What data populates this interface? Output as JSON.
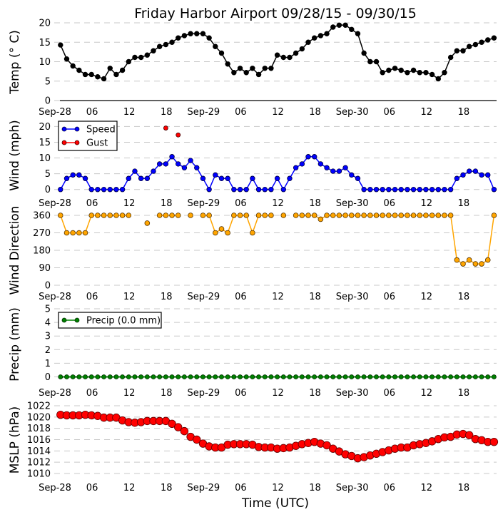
{
  "title": "Friday Harbor Airport 09/28/15 - 09/30/15",
  "xlabel": "Time (UTC)",
  "x_tick_labels": [
    "Sep-28",
    "06",
    "12",
    "18",
    "Sep-29",
    "06",
    "12",
    "18",
    "Sep-30",
    "06",
    "12",
    "18"
  ],
  "x_tick_hours": [
    0,
    6,
    12,
    18,
    24,
    30,
    36,
    42,
    48,
    54,
    60,
    66
  ],
  "colors": {
    "temp": "#000000",
    "speed": "#0000ff",
    "gust": "#ff0000",
    "direction": "#ffa500",
    "precip": "#008000",
    "mslp": "#ff0000"
  },
  "chart_data": [
    {
      "type": "line",
      "ylabel": "Temp (° C)",
      "ylim": [
        0,
        20
      ],
      "yticks": [
        "0",
        "5",
        "10",
        "15",
        "20"
      ],
      "x_hours_start": 0.9,
      "x_step_hours": 1,
      "series": [
        {
          "name": "Temp",
          "values": [
            14.3,
            10.7,
            8.9,
            7.8,
            6.7,
            6.7,
            6.1,
            5.6,
            8.3,
            6.7,
            7.8,
            10.0,
            11.1,
            11.1,
            11.7,
            12.8,
            13.9,
            14.4,
            15.0,
            16.1,
            16.7,
            17.2,
            17.2,
            17.2,
            16.1,
            13.9,
            12.2,
            9.4,
            7.2,
            8.3,
            7.2,
            8.3,
            6.7,
            8.3,
            8.3,
            11.7,
            11.1,
            11.1,
            12.2,
            13.3,
            15.0,
            16.1,
            16.7,
            17.2,
            18.9,
            19.4,
            19.4,
            18.3,
            17.2,
            12.2,
            10.0,
            10.0,
            7.2,
            7.8,
            8.3,
            7.8,
            7.2,
            7.8,
            7.2,
            7.2,
            6.7,
            5.6,
            7.2,
            11.1,
            12.8,
            12.8,
            13.9,
            14.4,
            15.0,
            15.6,
            16.1
          ]
        }
      ]
    },
    {
      "type": "line",
      "ylabel": "Wind (mph)",
      "ylim": [
        0,
        23
      ],
      "yticks": [
        "0",
        "5",
        "10",
        "15",
        "20"
      ],
      "legend": [
        "Speed",
        "Gust"
      ],
      "legend_position": "top-left",
      "series": [
        {
          "name": "Speed",
          "values": [
            0,
            3.5,
            4.6,
            4.6,
            3.5,
            0,
            0,
            0,
            0,
            0,
            0,
            3.5,
            5.8,
            3.5,
            3.5,
            5.8,
            8.1,
            8.1,
            10.4,
            8.1,
            6.9,
            9.2,
            6.9,
            3.5,
            0,
            4.6,
            3.5,
            3.5,
            0,
            0,
            0,
            3.5,
            0,
            0,
            0,
            3.5,
            0,
            3.5,
            6.9,
            8.1,
            10.4,
            10.4,
            8.1,
            6.9,
            5.8,
            5.8,
            6.9,
            4.6,
            3.5,
            0,
            0,
            0,
            0,
            0,
            0,
            0,
            0,
            0,
            0,
            0,
            0,
            0,
            0,
            0,
            3.5,
            4.6,
            5.8,
            5.8,
            4.6,
            4.6,
            0
          ]
        },
        {
          "name": "Gust",
          "values": [
            null,
            null,
            null,
            null,
            null,
            null,
            null,
            null,
            null,
            null,
            null,
            null,
            null,
            null,
            null,
            null,
            null,
            19.5,
            null,
            17.3,
            null,
            null,
            null,
            null,
            null,
            null,
            null,
            null,
            null,
            null,
            null,
            null,
            null,
            null,
            null,
            null,
            null,
            null,
            null,
            null,
            null,
            null,
            null,
            null,
            null,
            null,
            null,
            null,
            null,
            null,
            null,
            null,
            null,
            null,
            null,
            null,
            null,
            null,
            null,
            null,
            null,
            null,
            null,
            null,
            null,
            null,
            null,
            null,
            null,
            null,
            null
          ]
        }
      ]
    },
    {
      "type": "line",
      "ylabel": "Wind Direction",
      "ylim": [
        0,
        360
      ],
      "yticks": [
        "0",
        "90",
        "180",
        "270",
        "360"
      ],
      "series": [
        {
          "name": "Direction",
          "values": [
            360,
            270,
            270,
            270,
            270,
            360,
            360,
            360,
            360,
            360,
            360,
            360,
            null,
            null,
            320,
            null,
            360,
            360,
            360,
            360,
            null,
            360,
            null,
            360,
            360,
            270,
            290,
            270,
            360,
            360,
            360,
            270,
            360,
            360,
            360,
            null,
            360,
            null,
            360,
            360,
            360,
            360,
            340,
            360,
            360,
            360,
            360,
            360,
            360,
            360,
            360,
            360,
            360,
            360,
            360,
            360,
            360,
            360,
            360,
            360,
            360,
            360,
            360,
            360,
            130,
            110,
            130,
            110,
            110,
            130,
            360
          ]
        }
      ]
    },
    {
      "type": "line",
      "ylabel": "Precip (mm)",
      "ylim": [
        0,
        5
      ],
      "yticks": [
        "0",
        "1",
        "2",
        "3",
        "4",
        "5"
      ],
      "legend": [
        "Precip (0.0 mm)"
      ],
      "legend_position": "top-left",
      "series": [
        {
          "name": "Precip",
          "values": [
            0,
            0,
            0,
            0,
            0,
            0,
            0,
            0,
            0,
            0,
            0,
            0,
            0,
            0,
            0,
            0,
            0,
            0,
            0,
            0,
            0,
            0,
            0,
            0,
            0,
            0,
            0,
            0,
            0,
            0,
            0,
            0,
            0,
            0,
            0,
            0,
            0,
            0,
            0,
            0,
            0,
            0,
            0,
            0,
            0,
            0,
            0,
            0,
            0,
            0,
            0,
            0,
            0,
            0,
            0,
            0,
            0,
            0,
            0,
            0,
            0,
            0,
            0,
            0,
            0,
            0,
            0,
            0,
            0,
            0,
            0
          ]
        }
      ]
    },
    {
      "type": "scatter",
      "ylabel": "MSLP (hPa)",
      "ylim": [
        1010,
        1022
      ],
      "yticks": [
        "1010",
        "1012",
        "1014",
        "1016",
        "1018",
        "1020",
        "1022"
      ],
      "series": [
        {
          "name": "MSLP",
          "values": [
            1020.4,
            1020.3,
            1020.3,
            1020.3,
            1020.4,
            1020.3,
            1020.2,
            1019.9,
            1019.9,
            1019.9,
            1019.4,
            1019.1,
            1019.0,
            1019.1,
            1019.3,
            1019.3,
            1019.3,
            1019.3,
            1018.8,
            1018.2,
            1017.5,
            1016.5,
            1016.0,
            1015.3,
            1014.8,
            1014.6,
            1014.6,
            1015.1,
            1015.2,
            1015.2,
            1015.2,
            1015.1,
            1014.7,
            1014.6,
            1014.6,
            1014.4,
            1014.5,
            1014.6,
            1014.9,
            1015.2,
            1015.4,
            1015.6,
            1015.3,
            1015.0,
            1014.4,
            1013.9,
            1013.4,
            1013.1,
            1012.7,
            1012.9,
            1013.2,
            1013.5,
            1013.8,
            1014.1,
            1014.4,
            1014.6,
            1014.6,
            1015.0,
            1015.2,
            1015.4,
            1015.7,
            1016.1,
            1016.4,
            1016.5,
            1016.9,
            1017.0,
            1016.8,
            1016.1,
            1015.9,
            1015.6,
            1015.6
          ]
        }
      ]
    }
  ]
}
